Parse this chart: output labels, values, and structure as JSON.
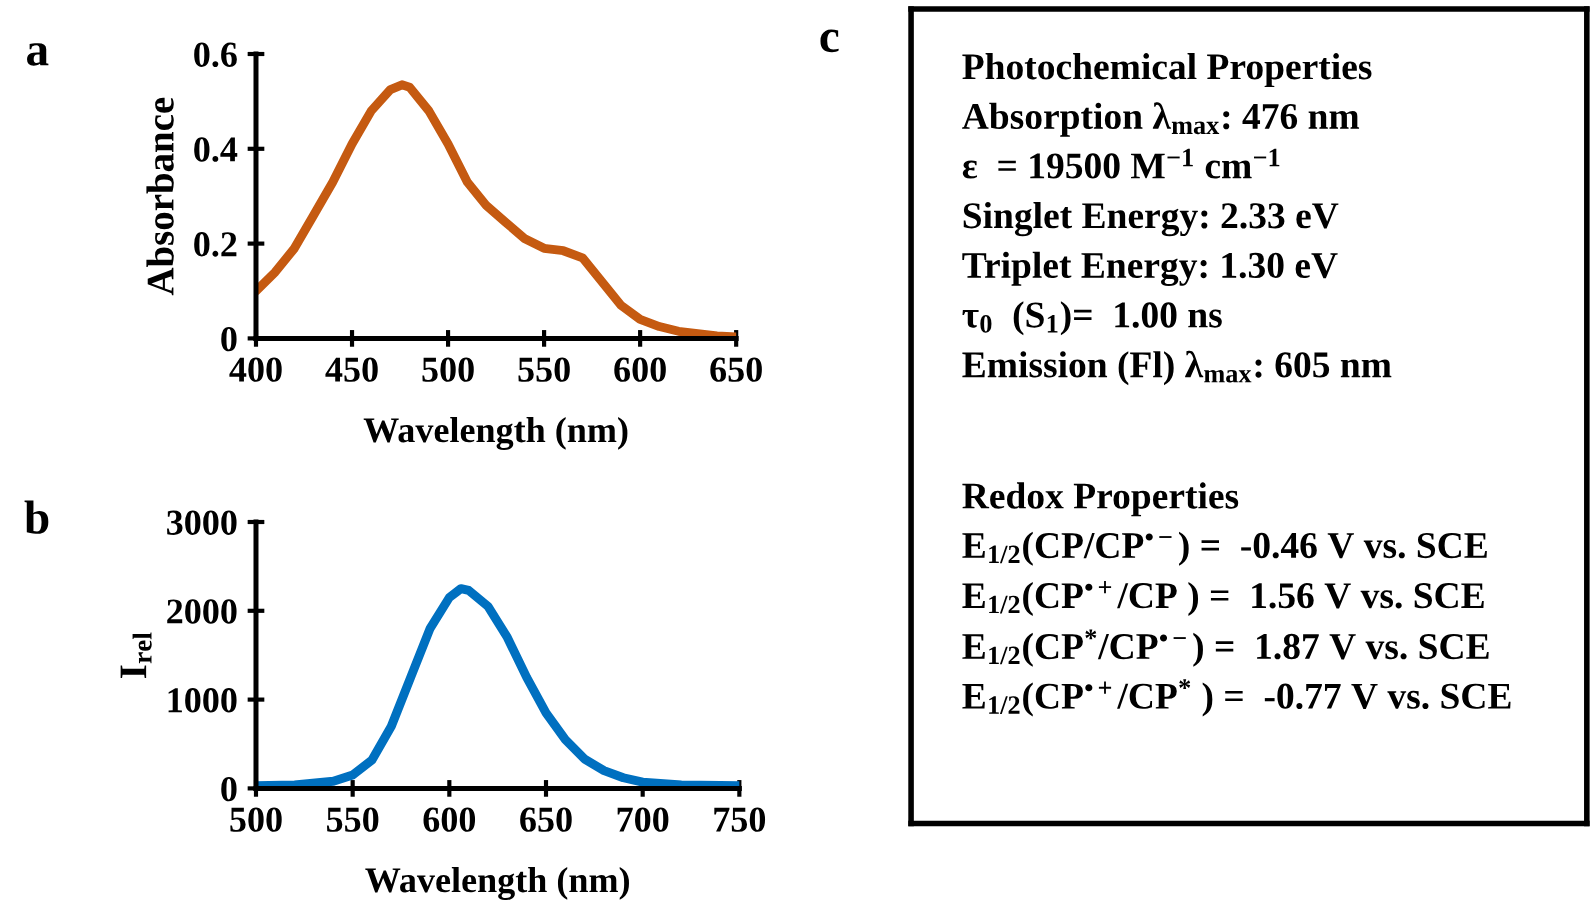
{
  "chart_data": [
    {
      "type": "line",
      "title": "a",
      "xlabel": "Wavelength (nm)",
      "ylabel": "Absorbance",
      "x": [
        400,
        410,
        420,
        430,
        440,
        450,
        460,
        470,
        476,
        480,
        490,
        500,
        510,
        520,
        530,
        540,
        550,
        560,
        570,
        580,
        590,
        600,
        610,
        620,
        630,
        640,
        650
      ],
      "series": [
        {
          "color": "#c55a11",
          "values": [
            0.1,
            0.14,
            0.19,
            0.26,
            0.33,
            0.41,
            0.48,
            0.525,
            0.535,
            0.53,
            0.48,
            0.41,
            0.33,
            0.28,
            0.245,
            0.21,
            0.19,
            0.185,
            0.17,
            0.12,
            0.07,
            0.04,
            0.025,
            0.015,
            0.01,
            0.005,
            0.003
          ]
        }
      ],
      "xlim": [
        400,
        650
      ],
      "xticks": [
        400,
        450,
        500,
        550,
        600,
        650
      ],
      "ylim": [
        0,
        0.6
      ],
      "yticks": [
        0,
        0.2,
        0.4,
        0.6
      ],
      "grid": false,
      "marker": "none",
      "line_style": "solid"
    },
    {
      "type": "line",
      "title": "b",
      "xlabel": "Wavelength (nm)",
      "ylabel": "I$_{rel}$",
      "x": [
        500,
        520,
        540,
        550,
        560,
        570,
        580,
        590,
        600,
        606,
        610,
        620,
        630,
        640,
        650,
        660,
        670,
        680,
        690,
        700,
        720,
        750
      ],
      "series": [
        {
          "color": "#0070c0",
          "values": [
            30,
            40,
            80,
            150,
            320,
            700,
            1250,
            1800,
            2150,
            2250,
            2230,
            2050,
            1700,
            1250,
            850,
            550,
            330,
            200,
            120,
            70,
            40,
            30
          ]
        }
      ],
      "xlim": [
        500,
        750
      ],
      "xticks": [
        500,
        550,
        600,
        650,
        700,
        750
      ],
      "ylim": [
        0,
        3000
      ],
      "yticks": [
        0,
        1000,
        2000,
        3000
      ],
      "grid": false,
      "marker": "none",
      "line_style": "solid"
    },
    {
      "type": "other",
      "title": "c",
      "annotations": [
        "Photochemical Properties",
        "Absorption λ$_{max}$: 476 nm",
        "ε  = 19500 M$^{−1}$ cm$^{−1}$",
        "Singlet Energy: 2.33 eV",
        "Triplet Energy: 1.30 eV",
        "τ$_{0}$  (S$_{1}$)=  1.00 ns",
        "Emission (Fl) λ$_{max}$: 605 nm",
        "Redox Properties",
        "E$_{1/2}$(CP/CP$^{•−}$) =  -0.46 V vs. SCE",
        "E$_{1/2}$(CP$^{•+}$/CP ) =  1.56 V vs. SCE",
        "E$_{1/2}$(CP$^{*}$/CP$^{•−}$) =  1.87 V vs. SCE",
        "E$_{1/2}$(CP$^{•+}$/CP$^{*}$ ) =  -0.77 V vs. SCE"
      ]
    }
  ]
}
